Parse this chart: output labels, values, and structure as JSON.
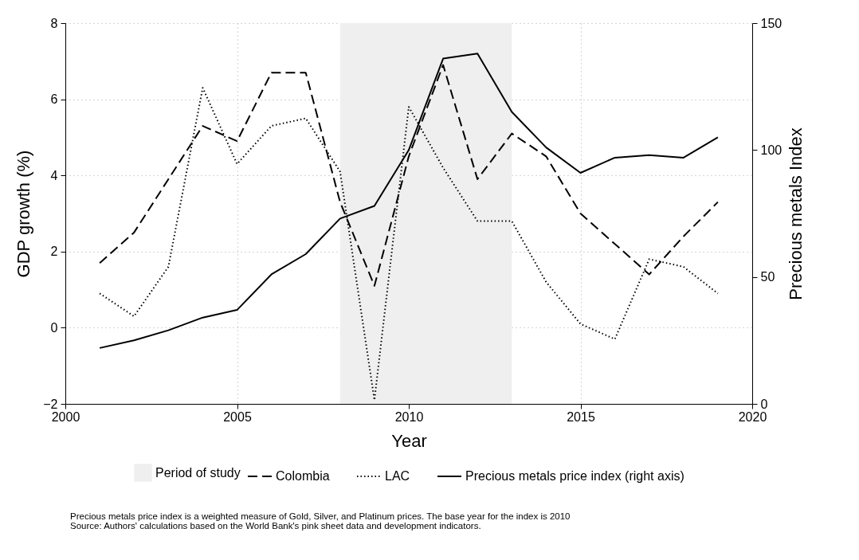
{
  "chart_data": {
    "type": "line",
    "xlabel": "Year",
    "ylabel": "GDP growth (%)",
    "y2label": "Precious metals Index",
    "x": [
      2001,
      2002,
      2003,
      2004,
      2005,
      2006,
      2007,
      2008,
      2009,
      2010,
      2011,
      2012,
      2013,
      2014,
      2015,
      2016,
      2017,
      2018,
      2019
    ],
    "series": [
      {
        "name": "Colombia",
        "color": "#000000",
        "line_style": "dashed",
        "values": [
          1.7,
          2.5,
          3.9,
          5.3,
          4.9,
          6.7,
          6.7,
          3.3,
          1.1,
          4.5,
          6.9,
          3.9,
          5.1,
          4.5,
          3.0,
          2.2,
          1.4,
          2.4,
          3.3
        ]
      },
      {
        "name": "LAC",
        "color": "#000000",
        "line_style": "dotted",
        "values": [
          0.9,
          0.3,
          1.6,
          6.3,
          4.3,
          5.3,
          5.5,
          4.1,
          -1.9,
          5.8,
          4.2,
          2.8,
          2.8,
          1.2,
          0.1,
          -0.3,
          1.8,
          1.6,
          0.9
        ]
      },
      {
        "name": "Precious metals price index (right axis)",
        "color": "#000000",
        "line_style": "solid",
        "axis": "y2",
        "values": [
          22,
          25,
          29,
          34,
          37,
          51,
          59,
          73,
          78,
          100,
          136,
          138,
          115,
          101,
          91,
          97,
          98,
          97,
          105
        ]
      }
    ],
    "bands": [
      {
        "axis": "x",
        "from": 2008,
        "to": 2013,
        "label": "Period of study",
        "color": "#efefef"
      }
    ],
    "xlim": [
      2000,
      2020
    ],
    "xticks": [
      2000,
      2005,
      2010,
      2015,
      2020
    ],
    "ylim": [
      -2,
      8
    ],
    "yticks": [
      -2,
      0,
      2,
      4,
      6,
      8
    ],
    "y2lim": [
      0,
      150
    ],
    "y2ticks": [
      0,
      50,
      100,
      150
    ],
    "grid": true,
    "legend": "bottom",
    "marker": "none",
    "annotations": [
      "Precious metals price index is a weighted measure of Gold, Silver, and Platinum prices. The base year for the index is 2010",
      "Source: Authors' calculations based on the World Bank's pink sheet data and development indicators."
    ]
  }
}
